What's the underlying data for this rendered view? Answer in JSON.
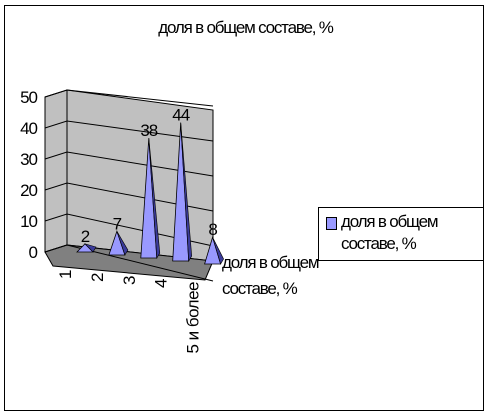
{
  "chart_data": {
    "type": "bar",
    "bar_shape": "pyramid",
    "three_d": true,
    "title": "доля в общем составе, %",
    "categories": [
      "1",
      "2",
      "3",
      "4",
      "5 и более"
    ],
    "series": [
      {
        "name": "доля в общем составе, %",
        "values": [
          2,
          7,
          38,
          44,
          8
        ]
      }
    ],
    "data_labels": [
      "2",
      "7",
      "38",
      "44",
      "8"
    ],
    "depth_axis_label": "доля в общем составе, %",
    "ylim": [
      0,
      50
    ],
    "yticks": [
      "0",
      "10",
      "20",
      "30",
      "40",
      "50"
    ],
    "grid": true,
    "legend_position": "right",
    "colors": {
      "series_fill": "#9999ff",
      "series_shade": "#3b3b9a",
      "wall": "#c0c0c0",
      "floor": "#808080",
      "chart_background": "#ffffff"
    }
  }
}
